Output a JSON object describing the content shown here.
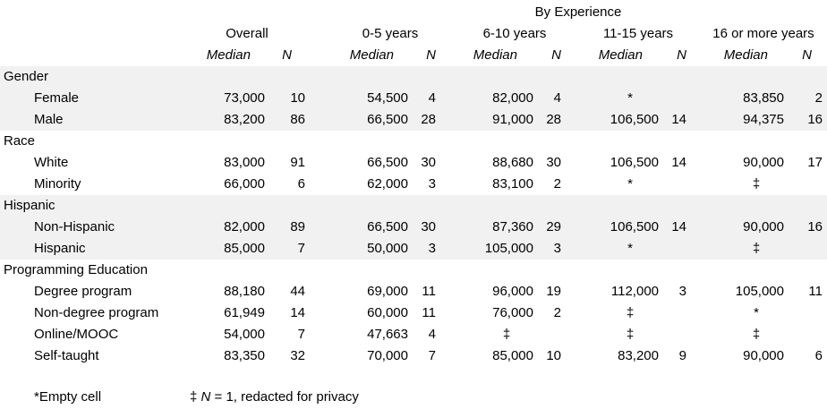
{
  "header": {
    "group_title": "By Experience",
    "columns": [
      "Overall",
      "0-5 years",
      "6-10 years",
      "11-15 years",
      "16 or more years"
    ],
    "median_label": "Median",
    "n_label": "N"
  },
  "rows": [
    {
      "type": "group",
      "label": "Gender"
    },
    {
      "type": "data",
      "label": "Female",
      "cells": [
        "73,000",
        "10",
        "54,500",
        "4",
        "82,000",
        "4",
        "*",
        "",
        "83,850",
        "2"
      ]
    },
    {
      "type": "data",
      "label": "Male",
      "cells": [
        "83,200",
        "86",
        "66,500",
        "28",
        "91,000",
        "28",
        "106,500",
        "14",
        "94,375",
        "16"
      ]
    },
    {
      "type": "group",
      "label": "Race"
    },
    {
      "type": "data",
      "label": "White",
      "cells": [
        "83,000",
        "91",
        "66,500",
        "30",
        "88,680",
        "30",
        "106,500",
        "14",
        "90,000",
        "17"
      ]
    },
    {
      "type": "data",
      "label": "Minority",
      "cells": [
        "66,000",
        "6",
        "62,000",
        "3",
        "83,100",
        "2",
        "*",
        "",
        "‡",
        ""
      ]
    },
    {
      "type": "group",
      "label": "Hispanic"
    },
    {
      "type": "data",
      "label": "Non-Hispanic",
      "cells": [
        "82,000",
        "89",
        "66,500",
        "30",
        "87,360",
        "29",
        "106,500",
        "14",
        "90,000",
        "16"
      ]
    },
    {
      "type": "data",
      "label": "Hispanic",
      "cells": [
        "85,000",
        "7",
        "50,000",
        "3",
        "105,000",
        "3",
        "*",
        "",
        "‡",
        ""
      ]
    },
    {
      "type": "group",
      "label": "Programming Education"
    },
    {
      "type": "data",
      "label": "Degree program",
      "cells": [
        "88,180",
        "44",
        "69,000",
        "11",
        "96,000",
        "19",
        "112,000",
        "3",
        "105,000",
        "11"
      ]
    },
    {
      "type": "data",
      "label": "Non-degree program",
      "cells": [
        "61,949",
        "14",
        "60,000",
        "11",
        "76,000",
        "2",
        "‡",
        "",
        "*",
        ""
      ]
    },
    {
      "type": "data",
      "label": "Online/MOOC",
      "cells": [
        "54,000",
        "7",
        "47,663",
        "4",
        "‡",
        "",
        "‡",
        "",
        "‡",
        ""
      ]
    },
    {
      "type": "data",
      "label": "Self-taught",
      "cells": [
        "83,350",
        "32",
        "70,000",
        "7",
        "85,000",
        "10",
        "83,200",
        "9",
        "90,000",
        "6"
      ]
    }
  ],
  "footnotes": {
    "empty": "*Empty cell",
    "redacted_symbol": "‡",
    "redacted_n": "N",
    "redacted_text": " = 1, redacted for privacy"
  }
}
